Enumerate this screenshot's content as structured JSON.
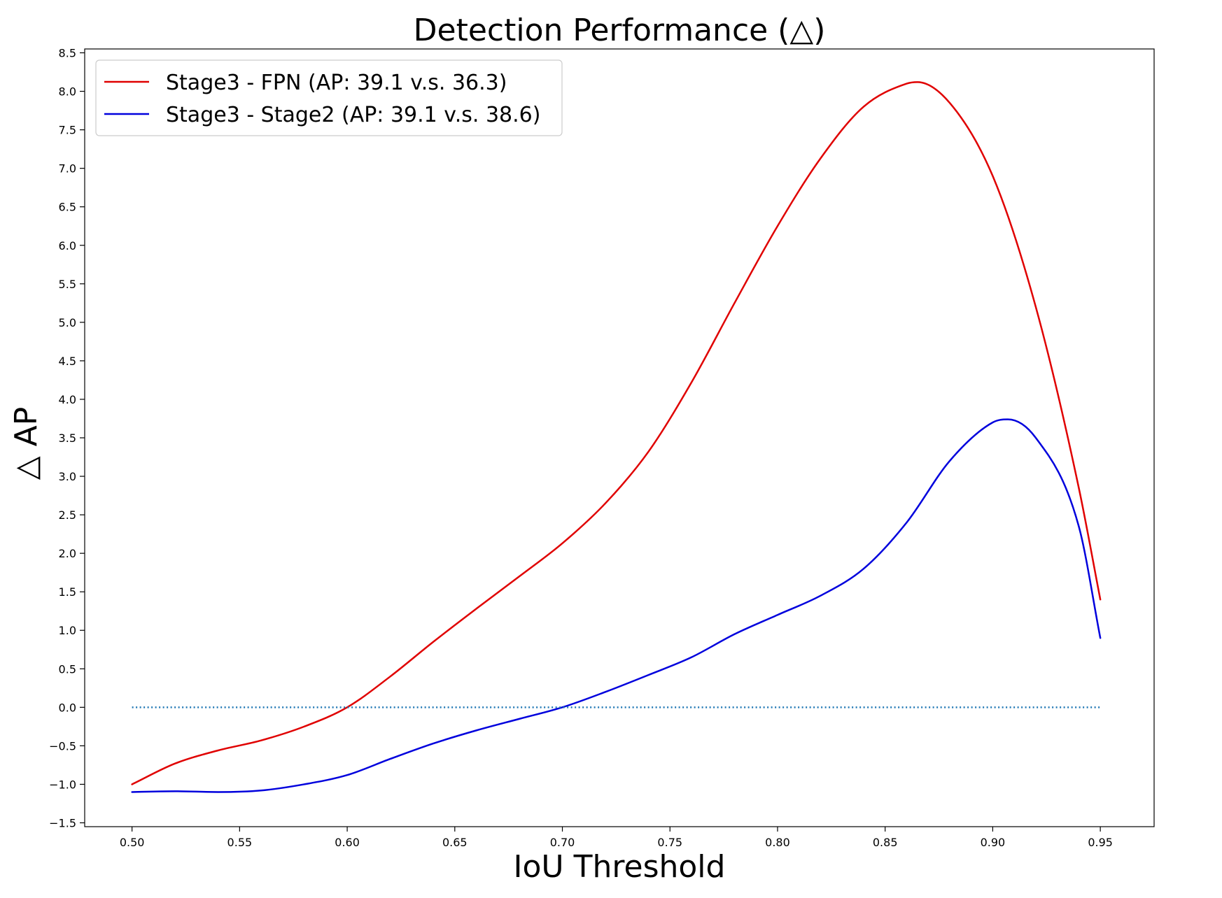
{
  "chart_data": {
    "type": "line",
    "title": "Detection Performance (△)",
    "xlabel": "IoU Threshold",
    "ylabel": "△ AP",
    "xlim": [
      0.478,
      0.975
    ],
    "ylim": [
      -1.55,
      8.55
    ],
    "x_ticks": [
      0.5,
      0.55,
      0.6,
      0.65,
      0.7,
      0.75,
      0.8,
      0.85,
      0.9,
      0.95
    ],
    "x_tick_labels": [
      "0.50",
      "0.55",
      "0.60",
      "0.65",
      "0.70",
      "0.75",
      "0.80",
      "0.85",
      "0.90",
      "0.95"
    ],
    "y_ticks": [
      -1.5,
      -1.0,
      -0.5,
      0.0,
      0.5,
      1.0,
      1.5,
      2.0,
      2.5,
      3.0,
      3.5,
      4.0,
      4.5,
      5.0,
      5.5,
      6.0,
      6.5,
      7.0,
      7.5,
      8.0,
      8.5
    ],
    "y_tick_labels": [
      "−1.5",
      "−1.0",
      "−0.5",
      "0.0",
      "0.5",
      "1.0",
      "1.5",
      "2.0",
      "2.5",
      "3.0",
      "3.5",
      "4.0",
      "4.5",
      "5.0",
      "5.5",
      "6.0",
      "6.5",
      "7.0",
      "7.5",
      "8.0",
      "8.5"
    ],
    "grid": false,
    "legend_position": "top-left",
    "series": [
      {
        "name": "Stage3 - FPN (AP: 39.1 v.s. 36.3)",
        "color": "#e00000",
        "style": "solid",
        "x": [
          0.5,
          0.52,
          0.54,
          0.56,
          0.58,
          0.6,
          0.62,
          0.64,
          0.66,
          0.68,
          0.7,
          0.72,
          0.74,
          0.76,
          0.78,
          0.8,
          0.82,
          0.84,
          0.86,
          0.865,
          0.88,
          0.9,
          0.92,
          0.94,
          0.95
        ],
        "y": [
          -1.0,
          -0.73,
          -0.56,
          -0.43,
          -0.25,
          0.0,
          0.4,
          0.85,
          1.28,
          1.7,
          2.13,
          2.65,
          3.32,
          4.22,
          5.25,
          6.25,
          7.13,
          7.8,
          8.1,
          8.12,
          7.85,
          6.9,
          5.2,
          2.85,
          1.4
        ]
      },
      {
        "name": "Stage3 - Stage2 (AP: 39.1 v.s. 38.6)",
        "color": "#0000dd",
        "style": "solid",
        "x": [
          0.5,
          0.52,
          0.54,
          0.56,
          0.58,
          0.6,
          0.62,
          0.64,
          0.66,
          0.68,
          0.7,
          0.72,
          0.74,
          0.76,
          0.78,
          0.8,
          0.82,
          0.84,
          0.86,
          0.88,
          0.9,
          0.907,
          0.92,
          0.94,
          0.95
        ],
        "y": [
          -1.1,
          -1.09,
          -1.1,
          -1.08,
          -1.0,
          -0.88,
          -0.67,
          -0.47,
          -0.3,
          -0.15,
          0.0,
          0.2,
          0.42,
          0.65,
          0.95,
          1.2,
          1.45,
          1.8,
          2.4,
          3.2,
          3.7,
          3.74,
          3.5,
          2.35,
          0.9
        ]
      },
      {
        "name": "",
        "color": "#1f77b4",
        "style": "dotted",
        "x": [
          0.5,
          0.95
        ],
        "y": [
          0.0,
          0.0
        ]
      }
    ]
  }
}
